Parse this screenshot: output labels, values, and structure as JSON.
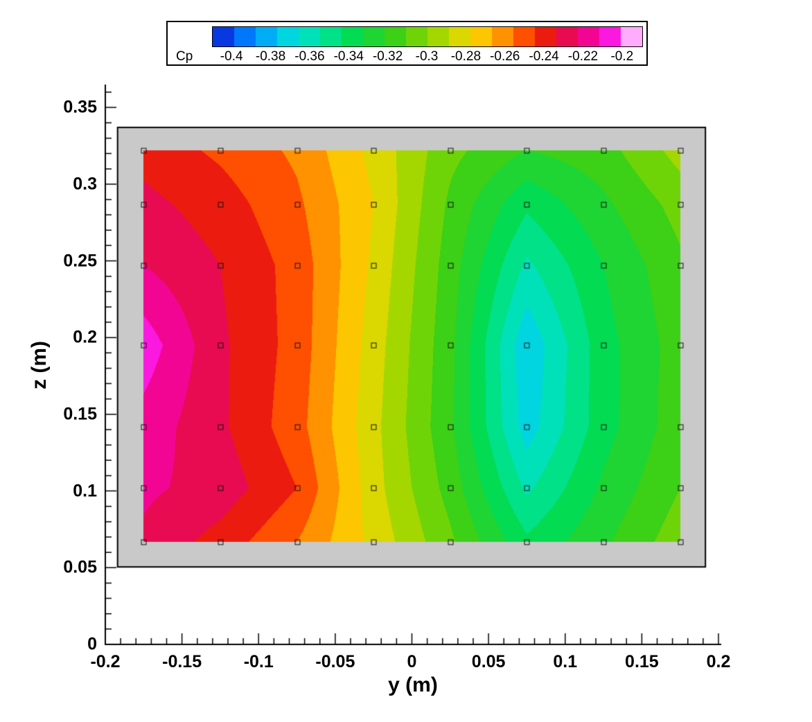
{
  "legend": {
    "label": "Cp",
    "tick_labels": [
      "-0.4",
      "-0.38",
      "-0.36",
      "-0.34",
      "-0.32",
      "-0.3",
      "-0.28",
      "-0.26",
      "-0.24",
      "-0.22",
      "-0.2"
    ]
  },
  "axes": {
    "x": {
      "title": "y (m)",
      "range": [
        -0.2,
        0.2
      ],
      "major_tick_values": [
        -0.2,
        -0.15,
        -0.1,
        -0.05,
        0,
        0.05,
        0.1,
        0.15,
        0.2
      ],
      "major_tick_labels": [
        "-0.2",
        "-0.15",
        "-0.1",
        "-0.05",
        "0",
        "0.05",
        "0.1",
        "0.15",
        "0.2"
      ],
      "minor_tick_step": 0.01
    },
    "z": {
      "title": "z (m)",
      "range": [
        0,
        0.365
      ],
      "major_tick_values": [
        0,
        0.05,
        0.1,
        0.15,
        0.2,
        0.25,
        0.3,
        0.35
      ],
      "major_tick_labels": [
        "0",
        "0.05",
        "0.1",
        "0.15",
        "0.2",
        "0.25",
        "0.3",
        "0.35"
      ],
      "minor_tick_step": 0.01
    }
  },
  "chart_data": {
    "type": "heatmap",
    "variant": "filled-contour",
    "title": "",
    "xlabel": "y (m)",
    "ylabel": "z (m)",
    "colorbar_label": "Cp",
    "xlim": [
      -0.2,
      0.2
    ],
    "ylim": [
      0,
      0.365
    ],
    "x": [
      -0.175,
      -0.125,
      -0.075,
      -0.025,
      0.025,
      0.075,
      0.125,
      0.175
    ],
    "y": [
      0.067,
      0.102,
      0.142,
      0.195,
      0.247,
      0.287,
      0.322
    ],
    "values": [
      [
        -0.232,
        -0.244,
        -0.26,
        -0.283,
        -0.308,
        -0.338,
        -0.322,
        -0.304
      ],
      [
        -0.228,
        -0.234,
        -0.25,
        -0.286,
        -0.314,
        -0.352,
        -0.328,
        -0.31
      ],
      [
        -0.224,
        -0.238,
        -0.256,
        -0.287,
        -0.318,
        -0.365,
        -0.334,
        -0.314
      ],
      [
        -0.214,
        -0.238,
        -0.254,
        -0.285,
        -0.317,
        -0.368,
        -0.334,
        -0.315
      ],
      [
        -0.23,
        -0.24,
        -0.254,
        -0.282,
        -0.315,
        -0.352,
        -0.33,
        -0.312
      ],
      [
        -0.237,
        -0.245,
        -0.258,
        -0.28,
        -0.312,
        -0.338,
        -0.322,
        -0.306
      ],
      [
        -0.244,
        -0.252,
        -0.262,
        -0.283,
        -0.307,
        -0.32,
        -0.314,
        -0.296
      ]
    ],
    "levels": {
      "min": -0.4,
      "max": -0.2,
      "step": 0.01
    },
    "legend_tick_values": [
      -0.4,
      -0.38,
      -0.36,
      -0.34,
      -0.32,
      -0.3,
      -0.28,
      -0.26,
      -0.24,
      -0.22,
      -0.2
    ],
    "colormap_stops": [
      [
        0.0,
        10,
        25,
        210
      ],
      [
        0.08,
        0,
        125,
        255
      ],
      [
        0.16,
        0,
        210,
        235
      ],
      [
        0.24,
        0,
        228,
        175
      ],
      [
        0.32,
        0,
        220,
        85
      ],
      [
        0.42,
        55,
        208,
        25
      ],
      [
        0.5,
        135,
        214,
        0
      ],
      [
        0.57,
        215,
        218,
        0
      ],
      [
        0.63,
        255,
        196,
        0
      ],
      [
        0.68,
        255,
        140,
        0
      ],
      [
        0.73,
        255,
        72,
        0
      ],
      [
        0.78,
        234,
        22,
        18
      ],
      [
        0.83,
        232,
        10,
        88
      ],
      [
        0.875,
        243,
        5,
        148
      ],
      [
        0.92,
        250,
        10,
        218
      ],
      [
        0.955,
        255,
        110,
        250
      ],
      [
        0.98,
        255,
        188,
        252
      ],
      [
        1.0,
        255,
        254,
        255
      ]
    ],
    "panel": {
      "x_range": [
        -0.192,
        0.1915
      ],
      "z_range": [
        0.0505,
        0.337
      ],
      "fill": "#c9c9c9",
      "border": "#000000"
    },
    "marker": {
      "shape": "open-square",
      "size": 7,
      "color": "#111111"
    }
  }
}
